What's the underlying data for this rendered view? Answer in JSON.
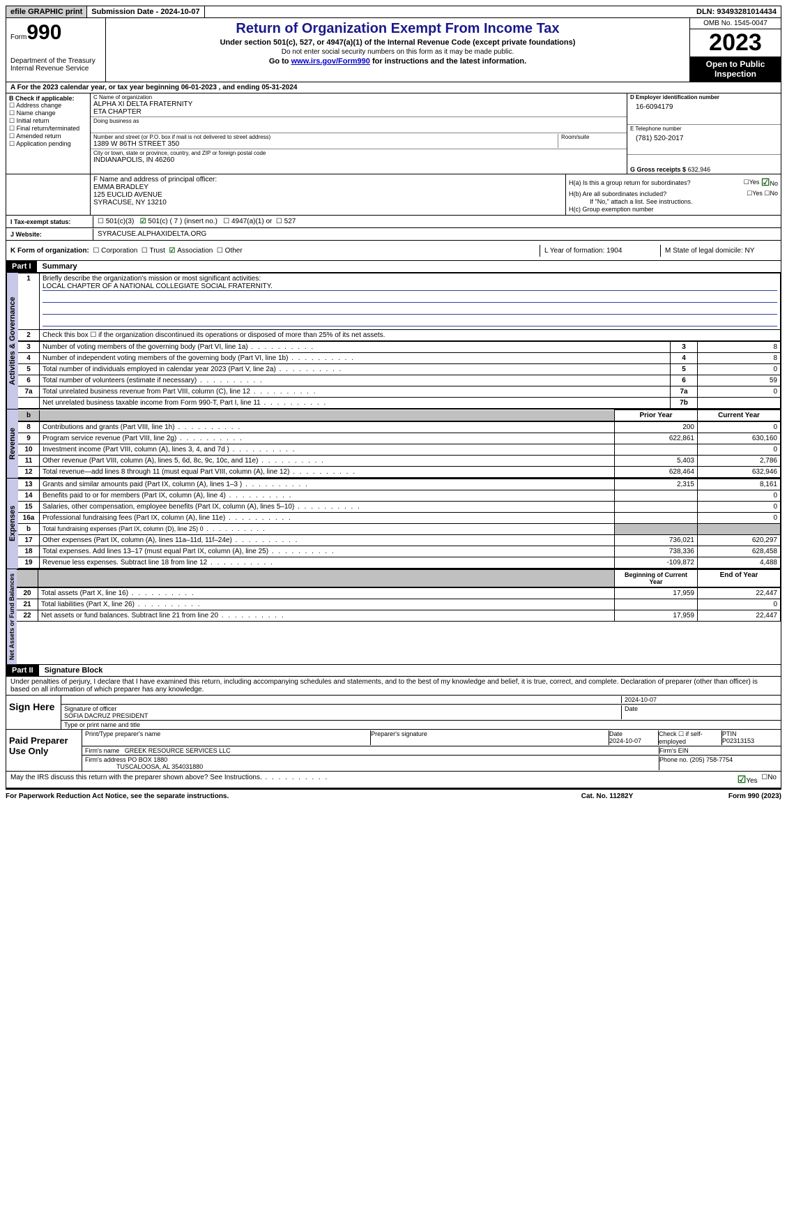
{
  "topbar": {
    "efile": "efile GRAPHIC print",
    "submission": "Submission Date - 2024-10-07",
    "dln": "DLN: 93493281014434"
  },
  "header": {
    "form_prefix": "Form",
    "form_no": "990",
    "dept": "Department of the Treasury Internal Revenue Service",
    "title": "Return of Organization Exempt From Income Tax",
    "sub1": "Under section 501(c), 527, or 4947(a)(1) of the Internal Revenue Code (except private foundations)",
    "sub2": "Do not enter social security numbers on this form as it may be made public.",
    "sub3_pre": "Go to ",
    "sub3_link": "www.irs.gov/Form990",
    "sub3_post": " for instructions and the latest information.",
    "omb": "OMB No. 1545-0047",
    "year": "2023",
    "open": "Open to Public Inspection"
  },
  "section_a": "A For the 2023 calendar year, or tax year beginning 06-01-2023   , and ending 05-31-2024",
  "section_b": {
    "label": "B Check if applicable:",
    "items": [
      "Address change",
      "Name change",
      "Initial return",
      "Final return/terminated",
      "Amended return",
      "Application pending"
    ]
  },
  "section_c": {
    "name_lbl": "C Name of organization",
    "name1": "ALPHA XI DELTA FRATERNITY",
    "name2": "ETA CHAPTER",
    "dba_lbl": "Doing business as",
    "addr_lbl": "Number and street (or P.O. box if mail is not delivered to street address)",
    "addr": "1389 W 86TH STREET 350",
    "room_lbl": "Room/suite",
    "city_lbl": "City or town, state or province, country, and ZIP or foreign postal code",
    "city": "INDIANAPOLIS, IN  46260"
  },
  "section_d": {
    "lbl": "D Employer identification number",
    "val": "16-6094179"
  },
  "section_e": {
    "lbl": "E Telephone number",
    "val": "(781) 520-2017"
  },
  "section_g": {
    "lbl": "G Gross receipts $",
    "val": "632,946"
  },
  "section_f": {
    "lbl": "F  Name and address of principal officer:",
    "name": "EMMA BRADLEY",
    "addr1": "125 EUCLID AVENUE",
    "addr2": "SYRACUSE, NY  13210"
  },
  "section_h": {
    "ha": "H(a)  Is this a group return for subordinates?",
    "hb": "H(b)  Are all subordinates included?",
    "hb_note": "If \"No,\" attach a list. See instructions.",
    "hc": "H(c)  Group exemption number"
  },
  "tax_status": {
    "lbl": "I   Tax-exempt status:",
    "o1": "501(c)(3)",
    "o2": "501(c) ( 7 ) (insert no.)",
    "o3": "4947(a)(1) or",
    "o4": "527"
  },
  "website": {
    "lbl": "J   Website:",
    "val": "SYRACUSE.ALPHAXIDELTA.ORG"
  },
  "section_k": {
    "lbl": "K Form of organization:",
    "opts": [
      "Corporation",
      "Trust",
      "Association",
      "Other"
    ],
    "checked": 2,
    "l": "L Year of formation: 1904",
    "m": "M State of legal domicile: NY"
  },
  "part1": {
    "hdr": "Part I",
    "title": "Summary"
  },
  "summary": {
    "line1_lbl": "Briefly describe the organization's mission or most significant activities:",
    "line1_val": "LOCAL CHAPTER OF A NATIONAL COLLEGIATE SOCIAL FRATERNITY.",
    "line2": "Check this box ☐  if the organization discontinued its operations or disposed of more than 25% of its net assets.",
    "rows_gov": [
      {
        "n": "3",
        "d": "Number of voting members of the governing body (Part VI, line 1a)",
        "box": "3",
        "v": "8"
      },
      {
        "n": "4",
        "d": "Number of independent voting members of the governing body (Part VI, line 1b)",
        "box": "4",
        "v": "8"
      },
      {
        "n": "5",
        "d": "Total number of individuals employed in calendar year 2023 (Part V, line 2a)",
        "box": "5",
        "v": "0"
      },
      {
        "n": "6",
        "d": "Total number of volunteers (estimate if necessary)",
        "box": "6",
        "v": "59"
      },
      {
        "n": "7a",
        "d": "Total unrelated business revenue from Part VIII, column (C), line 12",
        "box": "7a",
        "v": "0"
      },
      {
        "n": "",
        "d": "Net unrelated business taxable income from Form 990-T, Part I, line 11",
        "box": "7b",
        "v": ""
      }
    ],
    "hdr_prior": "Prior Year",
    "hdr_curr": "Current Year",
    "rows_rev": [
      {
        "n": "8",
        "d": "Contributions and grants (Part VIII, line 1h)",
        "p": "200",
        "c": "0"
      },
      {
        "n": "9",
        "d": "Program service revenue (Part VIII, line 2g)",
        "p": "622,861",
        "c": "630,160"
      },
      {
        "n": "10",
        "d": "Investment income (Part VIII, column (A), lines 3, 4, and 7d )",
        "p": "",
        "c": "0"
      },
      {
        "n": "11",
        "d": "Other revenue (Part VIII, column (A), lines 5, 6d, 8c, 9c, 10c, and 11e)",
        "p": "5,403",
        "c": "2,786"
      },
      {
        "n": "12",
        "d": "Total revenue—add lines 8 through 11 (must equal Part VIII, column (A), line 12)",
        "p": "628,464",
        "c": "632,946"
      }
    ],
    "rows_exp": [
      {
        "n": "13",
        "d": "Grants and similar amounts paid (Part IX, column (A), lines 1–3 )",
        "p": "2,315",
        "c": "8,161"
      },
      {
        "n": "14",
        "d": "Benefits paid to or for members (Part IX, column (A), line 4)",
        "p": "",
        "c": "0"
      },
      {
        "n": "15",
        "d": "Salaries, other compensation, employee benefits (Part IX, column (A), lines 5–10)",
        "p": "",
        "c": "0"
      },
      {
        "n": "16a",
        "d": "Professional fundraising fees (Part IX, column (A), line 11e)",
        "p": "",
        "c": "0"
      },
      {
        "n": "b",
        "d": "Total fundraising expenses (Part IX, column (D), line 25) 0",
        "p": "shade",
        "c": "shade"
      },
      {
        "n": "17",
        "d": "Other expenses (Part IX, column (A), lines 11a–11d, 11f–24e)",
        "p": "736,021",
        "c": "620,297"
      },
      {
        "n": "18",
        "d": "Total expenses. Add lines 13–17 (must equal Part IX, column (A), line 25)",
        "p": "738,336",
        "c": "628,458"
      },
      {
        "n": "19",
        "d": "Revenue less expenses. Subtract line 18 from line 12",
        "p": "-109,872",
        "c": "4,488"
      }
    ],
    "hdr_beg": "Beginning of Current Year",
    "hdr_end": "End of Year",
    "rows_net": [
      {
        "n": "20",
        "d": "Total assets (Part X, line 16)",
        "p": "17,959",
        "c": "22,447"
      },
      {
        "n": "21",
        "d": "Total liabilities (Part X, line 26)",
        "p": "",
        "c": "0"
      },
      {
        "n": "22",
        "d": "Net assets or fund balances. Subtract line 21 from line 20",
        "p": "17,959",
        "c": "22,447"
      }
    ]
  },
  "vtabs": {
    "gov": "Activities & Governance",
    "rev": "Revenue",
    "exp": "Expenses",
    "net": "Net Assets or Fund Balances"
  },
  "part2": {
    "hdr": "Part II",
    "title": "Signature Block",
    "decl": "Under penalties of perjury, I declare that I have examined this return, including accompanying schedules and statements, and to the best of my knowledge and belief, it is true, correct, and complete. Declaration of preparer (other than officer) is based on all information of which preparer has any knowledge."
  },
  "sign": {
    "here": "Sign Here",
    "sig_lbl": "Signature of officer",
    "officer": "SOFIA DACRUZ  PRESIDENT",
    "name_lbl": "Type or print name and title",
    "date": "2024-10-07"
  },
  "paid": {
    "lbl": "Paid Preparer Use Only",
    "p1": "Print/Type preparer's name",
    "p2": "Preparer's signature",
    "p3": "Date",
    "p3v": "2024-10-07",
    "p4": "Check ☐ if self-employed",
    "p5": "PTIN",
    "p5v": "P02313153",
    "firm_lbl": "Firm's name",
    "firm": "GREEK RESOURCE SERVICES LLC",
    "ein_lbl": "Firm's EIN",
    "addr_lbl": "Firm's address",
    "addr1": "PO BOX 1880",
    "addr2": "TUSCALOOSA, AL  354031880",
    "phone_lbl": "Phone no.",
    "phone": "(205) 758-7754"
  },
  "discuss": "May the IRS discuss this return with the preparer shown above? See Instructions.",
  "footer": {
    "l": "For Paperwork Reduction Act Notice, see the separate instructions.",
    "c": "Cat. No. 11282Y",
    "r": "Form 990 (2023)"
  }
}
